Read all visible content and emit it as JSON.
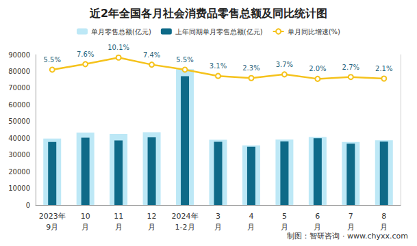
{
  "chart_data": {
    "type": "bar",
    "title": "近2年全国各月社会消费品零售总额及同比统计图",
    "source": "制图：智研咨询 · www.chyxx.com",
    "categories": [
      "2023年\n9月",
      "10\n月",
      "11\n月",
      "12\n月",
      "2024年\n1-2月",
      "3\n月",
      "4\n月",
      "5\n月",
      "6\n月",
      "7\n月",
      "8\n月"
    ],
    "series": [
      {
        "name": "单月零售总额(亿元)",
        "type": "bar",
        "color": "#bde8f6",
        "values": [
          39826,
          43333,
          42505,
          43550,
          81307,
          39020,
          35699,
          39211,
          40732,
          37757,
          38726
        ]
      },
      {
        "name": "上年同期单月零售总额(亿元)",
        "type": "bar",
        "color": "#0e6a88",
        "values": [
          37745,
          40271,
          38615,
          40542,
          77067,
          37855,
          34910,
          38064,
          39950,
          36761,
          37932
        ]
      },
      {
        "name": "单月同比增速(%)",
        "type": "line",
        "color": "#f5c21b",
        "axis": "y2",
        "marker": "circle",
        "data_labels": true,
        "values": [
          5.5,
          7.6,
          10.1,
          7.4,
          5.5,
          3.1,
          2.3,
          3.7,
          2.0,
          2.7,
          2.1
        ],
        "value_labels": [
          "5.5%",
          "7.6%",
          "10.1%",
          "7.4%",
          "5.5%",
          "3.1%",
          "2.3%",
          "3.7%",
          "2.0%",
          "2.7%",
          "2.1%"
        ]
      }
    ],
    "ylim": [
      0,
      90000
    ],
    "yticks": [
      0,
      10000,
      20000,
      30000,
      40000,
      50000,
      60000,
      70000,
      80000,
      90000
    ],
    "y2lim": [
      -46,
      11.2
    ],
    "grid": false,
    "legend": "top"
  }
}
